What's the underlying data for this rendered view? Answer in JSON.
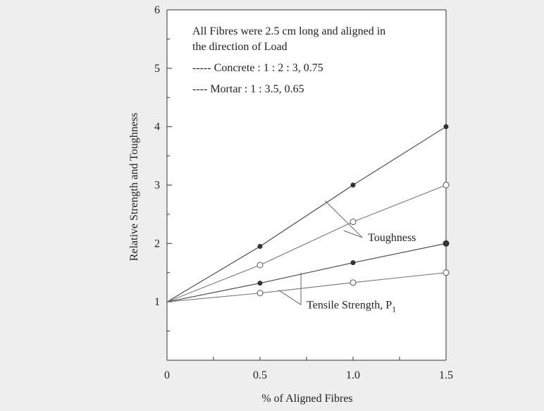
{
  "chart_data": {
    "type": "line",
    "xlabel": "% of Aligned Fibres",
    "ylabel": "Relative Strength and Toughness",
    "xlim": [
      0,
      1.5
    ],
    "ylim": [
      0,
      6
    ],
    "x_ticks": [
      0,
      0.5,
      1.0,
      1.5
    ],
    "x_tick_labels": [
      "0",
      "0.5",
      "1.0",
      "1.5"
    ],
    "y_ticks": [
      1,
      2,
      3,
      4,
      5,
      6
    ],
    "y_tick_labels": [
      "1",
      "2",
      "3",
      "4",
      "5",
      "6"
    ],
    "grid": false,
    "notes": [
      "All Fibres were 2.5 cm long and aligned in",
      "the direction of Load",
      "----- Concrete : 1 : 2 : 3, 0.75",
      "---- Mortar : 1 : 3.5, 0.65"
    ],
    "series": [
      {
        "x": [
          0,
          0.5,
          1.0,
          1.5
        ],
        "values": [
          1,
          1.95,
          3.0,
          4.0
        ],
        "marker": "filled",
        "color": "#444444"
      },
      {
        "x": [
          0,
          0.5,
          1.0,
          1.5
        ],
        "values": [
          1,
          1.63,
          2.37,
          3.0
        ],
        "marker": "open",
        "color": "#777777"
      },
      {
        "x": [
          0,
          0.5,
          1.0,
          1.5
        ],
        "values": [
          1,
          1.32,
          1.67,
          2.0
        ],
        "marker": "filled",
        "color": "#444444"
      },
      {
        "x": [
          0,
          0.5,
          1.0,
          1.5
        ],
        "values": [
          1,
          1.15,
          1.33,
          1.5
        ],
        "marker": "open",
        "color": "#777777"
      }
    ],
    "annotations": [
      {
        "label": "Toughness",
        "pointers": [
          [
            0.85,
            2.73
          ],
          [
            0.95,
            2.22
          ]
        ],
        "anchor": [
          1.05,
          2.1
        ]
      },
      {
        "label": "Tensile Strength, P",
        "subscript": "1",
        "pointers": [
          [
            0.72,
            1.5
          ],
          [
            0.6,
            1.2
          ]
        ],
        "anchor": [
          0.72,
          0.95
        ]
      }
    ]
  }
}
